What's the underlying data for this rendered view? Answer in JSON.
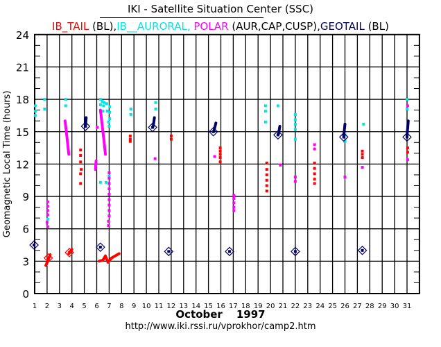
{
  "chart_data": {
    "type": "scatter",
    "title": "IKI - Satellite Situation Center (SSC)",
    "legend": [
      {
        "name": "IB_TAIL",
        "note": " (BL),",
        "color": "#ff0000"
      },
      {
        "name": "IB__AURORAL, ",
        "note": "",
        "color": "#00e5e5"
      },
      {
        "name": "POLAR",
        "note": " (AUR,CAP,CUSP),",
        "color": "#ff00ff"
      },
      {
        "name": "GEOTAIL",
        "note": " (BL)",
        "color": "#000066"
      }
    ],
    "ylabel": "Geomagnetic Local Time  (hours)",
    "xlabel_month": "October",
    "xlabel_year": "1997",
    "url": "http://www.iki.rssi.ru/vprokhor/camp2.htm",
    "xlim": [
      1,
      32
    ],
    "ylim": [
      0,
      24
    ],
    "yticks": [
      0,
      3,
      6,
      9,
      12,
      15,
      18,
      21,
      24
    ],
    "xticks": [
      1,
      2,
      3,
      4,
      5,
      6,
      7,
      8,
      9,
      10,
      11,
      12,
      13,
      14,
      15,
      16,
      17,
      18,
      19,
      20,
      21,
      22,
      23,
      24,
      25,
      26,
      27,
      28,
      29,
      30,
      31
    ],
    "grid": true,
    "series": [
      {
        "name": "IB_TAIL",
        "color": "#ff0000",
        "tracks": [
          [
            [
              1.9,
              2.6
            ],
            [
              2.05,
              3.0
            ],
            [
              2.25,
              3.6
            ]
          ],
          [
            [
              3.75,
              3.7
            ],
            [
              4.0,
              4.1
            ]
          ],
          [
            [
              6.2,
              3.0
            ],
            [
              6.5,
              3.1
            ],
            [
              6.7,
              3.5
            ],
            [
              6.9,
              2.9
            ],
            [
              7.2,
              3.3
            ],
            [
              7.5,
              3.5
            ],
            [
              7.8,
              3.7
            ]
          ]
        ],
        "points": [
          [
            4.7,
            13.3
          ],
          [
            4.7,
            12.8
          ],
          [
            4.7,
            12.2
          ],
          [
            4.75,
            11.5
          ],
          [
            4.7,
            11.1
          ],
          [
            4.7,
            10.2
          ],
          [
            8.7,
            14.6
          ],
          [
            8.7,
            14.3
          ],
          [
            8.7,
            14.1
          ],
          [
            12.0,
            14.6
          ],
          [
            12.0,
            14.3
          ],
          [
            15.95,
            13.5
          ],
          [
            15.95,
            13.2
          ],
          [
            15.95,
            12.9
          ],
          [
            15.95,
            12.6
          ],
          [
            15.95,
            12.2
          ],
          [
            19.7,
            12.1
          ],
          [
            19.7,
            11.5
          ],
          [
            19.7,
            11.0
          ],
          [
            19.7,
            10.5
          ],
          [
            19.7,
            10.0
          ],
          [
            19.7,
            9.5
          ],
          [
            23.55,
            12.1
          ],
          [
            23.55,
            11.6
          ],
          [
            23.55,
            11.1
          ],
          [
            23.55,
            10.6
          ],
          [
            23.55,
            10.2
          ],
          [
            27.4,
            13.2
          ],
          [
            27.4,
            12.9
          ],
          [
            27.4,
            12.6
          ],
          [
            31.05,
            13.5
          ],
          [
            31.05,
            13.1
          ]
        ],
        "diamonds": [
          [
            2.1,
            3.3
          ],
          [
            3.8,
            3.8
          ]
        ]
      },
      {
        "name": "IB_AURORAL",
        "color": "#00e5e5",
        "tracks": [],
        "points": [
          [
            1.05,
            17.4
          ],
          [
            1.05,
            16.9
          ],
          [
            1.05,
            16.5
          ],
          [
            1.8,
            18.0
          ],
          [
            1.8,
            17.1
          ],
          [
            2.05,
            6.9
          ],
          [
            3.5,
            18.0
          ],
          [
            3.5,
            17.4
          ],
          [
            6.3,
            18.0
          ],
          [
            6.45,
            17.8
          ],
          [
            6.6,
            17.7
          ],
          [
            6.3,
            17.5
          ],
          [
            6.55,
            17.4
          ],
          [
            6.3,
            16.9
          ],
          [
            6.5,
            16.9
          ],
          [
            6.8,
            17.6
          ],
          [
            6.85,
            16.9
          ],
          [
            7.05,
            17.3
          ],
          [
            7.05,
            16.8
          ],
          [
            7.05,
            16.2
          ],
          [
            6.95,
            15.9
          ],
          [
            7.0,
            15.5
          ],
          [
            6.3,
            10.3
          ],
          [
            6.75,
            10.3
          ],
          [
            7.0,
            10.9
          ],
          [
            8.75,
            17.1
          ],
          [
            8.75,
            16.6
          ],
          [
            10.75,
            17.7
          ],
          [
            10.75,
            17.1
          ],
          [
            19.6,
            17.4
          ],
          [
            19.6,
            16.9
          ],
          [
            19.6,
            15.9
          ],
          [
            20.6,
            17.4
          ],
          [
            22.0,
            16.6
          ],
          [
            22.0,
            16.1
          ],
          [
            22.0,
            15.7
          ],
          [
            22.0,
            15.2
          ],
          [
            22.0,
            14.3
          ],
          [
            26.0,
            14.7
          ],
          [
            26.0,
            14.1
          ],
          [
            27.5,
            15.7
          ],
          [
            31.0,
            18.0
          ],
          [
            31.0,
            17.1
          ]
        ],
        "diamonds": []
      },
      {
        "name": "POLAR",
        "color": "#ff00ff",
        "tracks": [
          [
            [
              3.45,
              16.0
            ],
            [
              3.6,
              14.5
            ],
            [
              3.75,
              12.9
            ]
          ],
          [
            [
              6.3,
              17.0
            ],
            [
              6.45,
              15.5
            ],
            [
              6.6,
              14.0
            ],
            [
              6.7,
              12.9
            ]
          ],
          [
            [
              5.95,
              12.3
            ],
            [
              5.9,
              11.5
            ]
          ]
        ],
        "points": [
          [
            2.05,
            8.5
          ],
          [
            2.05,
            8.1
          ],
          [
            2.05,
            7.7
          ],
          [
            2.05,
            7.3
          ],
          [
            2.0,
            6.6
          ],
          [
            2.05,
            6.2
          ],
          [
            7.0,
            11.2
          ],
          [
            7.0,
            10.7
          ],
          [
            7.0,
            10.2
          ],
          [
            7.0,
            9.7
          ],
          [
            7.0,
            9.2
          ],
          [
            7.0,
            8.7
          ],
          [
            7.0,
            8.2
          ],
          [
            7.0,
            7.7
          ],
          [
            7.0,
            7.2
          ],
          [
            6.95,
            6.7
          ],
          [
            6.95,
            6.3
          ],
          [
            6.05,
            15.4
          ],
          [
            10.7,
            12.5
          ],
          [
            15.5,
            12.7
          ],
          [
            17.05,
            9.1
          ],
          [
            17.05,
            8.8
          ],
          [
            17.05,
            8.4
          ],
          [
            17.05,
            8.0
          ],
          [
            17.05,
            7.7
          ],
          [
            20.8,
            11.9
          ],
          [
            22.0,
            10.8
          ],
          [
            22.0,
            10.4
          ],
          [
            23.55,
            13.8
          ],
          [
            23.55,
            13.4
          ],
          [
            26.0,
            10.8
          ],
          [
            27.4,
            11.7
          ],
          [
            31.05,
            17.4
          ],
          [
            31.05,
            12.4
          ]
        ],
        "diamonds": []
      },
      {
        "name": "GEOTAIL",
        "color": "#000066",
        "tracks": [
          [
            [
              5.1,
              15.6
            ],
            [
              5.15,
              16.3
            ]
          ],
          [
            [
              10.55,
              15.5
            ],
            [
              10.65,
              16.3
            ]
          ],
          [
            [
              15.45,
              15.1
            ],
            [
              15.6,
              15.8
            ]
          ],
          [
            [
              20.65,
              14.8
            ],
            [
              20.75,
              15.5
            ]
          ],
          [
            [
              25.9,
              14.6
            ],
            [
              26.0,
              15.7
            ]
          ],
          [
            [
              31.0,
              14.6
            ],
            [
              31.1,
              16.0
            ]
          ]
        ],
        "points": [],
        "diamonds": [
          [
            0.95,
            4.5
          ],
          [
            5.1,
            15.5
          ],
          [
            6.3,
            4.3
          ],
          [
            10.5,
            15.4
          ],
          [
            11.8,
            3.9
          ],
          [
            15.4,
            15.0
          ],
          [
            16.7,
            3.9
          ],
          [
            20.6,
            14.7
          ],
          [
            22.0,
            3.9
          ],
          [
            25.9,
            14.5
          ],
          [
            27.4,
            4.0
          ],
          [
            31.0,
            14.5
          ]
        ]
      }
    ]
  }
}
